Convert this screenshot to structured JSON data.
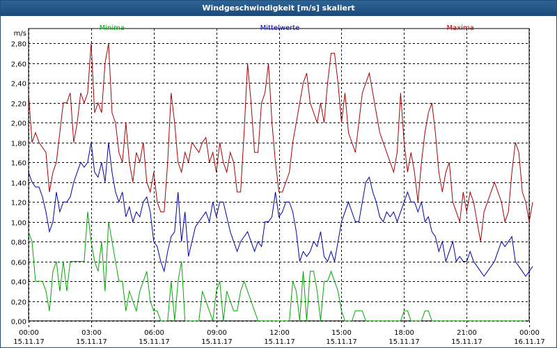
{
  "window": {
    "title": "Windgeschwindigkeit [m/s] skaliert"
  },
  "chart_data": {
    "type": "line",
    "title": "Windgeschwindigkeit [m/s] skaliert",
    "ylabel": "m/s",
    "ylim": [
      0,
      2.95
    ],
    "xlim": [
      0,
      24
    ],
    "grid": true,
    "y_ticks": [
      {
        "value": 0.0,
        "label": "0,00"
      },
      {
        "value": 0.2,
        "label": "0,20"
      },
      {
        "value": 0.4,
        "label": "0,40"
      },
      {
        "value": 0.6,
        "label": "0,60"
      },
      {
        "value": 0.8,
        "label": "0,80"
      },
      {
        "value": 1.0,
        "label": "1,00"
      },
      {
        "value": 1.2,
        "label": "1,20"
      },
      {
        "value": 1.4,
        "label": "1,40"
      },
      {
        "value": 1.6,
        "label": "1,60"
      },
      {
        "value": 1.8,
        "label": "1,80"
      },
      {
        "value": 2.0,
        "label": "2,00"
      },
      {
        "value": 2.2,
        "label": "2,20"
      },
      {
        "value": 2.4,
        "label": "2,40"
      },
      {
        "value": 2.6,
        "label": "2,60"
      },
      {
        "value": 2.8,
        "label": "2,80"
      }
    ],
    "x_ticks": [
      {
        "hour": 0,
        "time": "00:00",
        "date": "15.11.17"
      },
      {
        "hour": 3,
        "time": "03:00",
        "date": "15.11.17"
      },
      {
        "hour": 6,
        "time": "06:00",
        "date": "15.11.17"
      },
      {
        "hour": 9,
        "time": "09:00",
        "date": "15.11.17"
      },
      {
        "hour": 12,
        "time": "12:00",
        "date": "15.11.17"
      },
      {
        "hour": 15,
        "time": "15:00",
        "date": "15.11.17"
      },
      {
        "hour": 18,
        "time": "18:00",
        "date": "15.11.17"
      },
      {
        "hour": 21,
        "time": "21:00",
        "date": "15.11.17"
      },
      {
        "hour": 24,
        "time": "00:00",
        "date": "16.11.17"
      }
    ],
    "x_interval_hours": 0.1667,
    "series": [
      {
        "name": "Minima",
        "color": "#00aa00",
        "values": [
          0.9,
          0.8,
          0.4,
          0.4,
          0.4,
          0.3,
          0.1,
          0.5,
          0.6,
          0.3,
          0.6,
          0.3,
          0.6,
          0.6,
          0.6,
          0.6,
          0.6,
          1.1,
          0.8,
          0.6,
          0.5,
          0.8,
          0.3,
          1.0,
          0.8,
          0.6,
          0.4,
          0.4,
          0.1,
          0.3,
          0.2,
          0.1,
          0.3,
          0.4,
          0.5,
          0.2,
          0.1,
          0.1,
          0.0,
          0.0,
          0.0,
          0.4,
          0.0,
          0.4,
          0.6,
          0.0,
          0.0,
          0.0,
          0.0,
          0.0,
          0.3,
          0.2,
          0.1,
          0.0,
          0.3,
          0.4,
          0.0,
          0.3,
          0.2,
          0.1,
          0.1,
          0.3,
          0.4,
          0.3,
          0.2,
          0.1,
          0.0,
          0.0,
          0.0,
          0.0,
          0.0,
          0.0,
          0.0,
          0.0,
          0.0,
          0.0,
          0.4,
          0.3,
          0.0,
          0.5,
          0.0,
          0.5,
          0.5,
          0.3,
          0.0,
          0.4,
          0.4,
          0.5,
          0.4,
          0.3,
          0.1,
          0.0,
          0.0,
          0.0,
          0.1,
          0.1,
          0.1,
          0.0,
          0.0,
          0.0,
          0.0,
          0.0,
          0.0,
          0.0,
          0.0,
          0.0,
          0.0,
          0.0,
          0.1,
          0.1,
          0.0,
          0.0,
          0.0,
          0.0,
          0.1,
          0.1,
          0.0,
          0.0,
          0.0,
          0.0,
          0.0,
          0.0,
          0.0,
          0.0,
          0.0,
          0.0,
          0.0,
          0.0,
          0.0,
          0.0,
          0.0,
          0.0,
          0.0,
          0.0,
          0.0,
          0.0,
          0.0,
          0.0,
          0.0,
          0.0,
          0.0,
          0.0,
          0.0,
          0.0
        ],
        "label_hour": 4.0,
        "label_value": 2.95
      },
      {
        "name": "Mittelwerte",
        "color": "#0000aa",
        "values": [
          1.5,
          1.4,
          1.35,
          1.35,
          1.25,
          1.1,
          0.9,
          1.0,
          1.3,
          1.1,
          1.2,
          1.2,
          1.25,
          1.4,
          1.5,
          1.6,
          1.55,
          1.6,
          1.8,
          1.5,
          1.45,
          1.6,
          1.4,
          1.8,
          1.5,
          1.3,
          1.2,
          1.3,
          1.05,
          1.15,
          1.0,
          1.1,
          1.05,
          1.2,
          1.25,
          1.1,
          0.8,
          0.75,
          0.6,
          0.5,
          0.7,
          0.85,
          0.9,
          1.3,
          0.8,
          1.1,
          0.65,
          0.8,
          0.95,
          1.0,
          1.05,
          1.1,
          1.0,
          1.2,
          1.05,
          1.2,
          1.2,
          1.05,
          0.9,
          0.8,
          0.7,
          0.8,
          0.85,
          0.9,
          0.8,
          0.7,
          0.8,
          0.75,
          1.0,
          1.0,
          1.05,
          1.3,
          1.05,
          1.1,
          1.2,
          1.2,
          1.1,
          0.9,
          0.6,
          0.7,
          0.65,
          0.7,
          0.8,
          0.75,
          0.9,
          0.65,
          0.6,
          0.7,
          0.6,
          0.8,
          1.0,
          1.1,
          1.2,
          1.1,
          1.0,
          1.0,
          1.2,
          1.4,
          1.45,
          1.3,
          1.2,
          1.05,
          1.0,
          1.1,
          1.05,
          1.1,
          1.0,
          1.1,
          1.2,
          1.3,
          1.2,
          1.2,
          1.1,
          1.2,
          1.0,
          1.05,
          0.9,
          0.85,
          0.7,
          0.8,
          0.6,
          0.7,
          0.8,
          0.6,
          0.65,
          0.6,
          0.6,
          0.7,
          0.6,
          0.55,
          0.5,
          0.45,
          0.5,
          0.55,
          0.6,
          0.7,
          0.8,
          0.75,
          0.8,
          0.85,
          0.6,
          0.55,
          0.5,
          0.45,
          0.5,
          0.55
        ],
        "label_hour": 12.05,
        "label_value": 2.95
      },
      {
        "name": "Maxima",
        "color": "#aa0000",
        "values": [
          2.3,
          1.8,
          1.9,
          1.8,
          1.75,
          1.7,
          1.3,
          1.5,
          1.6,
          1.9,
          2.2,
          2.2,
          2.3,
          1.8,
          2.0,
          2.3,
          2.2,
          2.3,
          2.8,
          2.1,
          2.2,
          2.1,
          2.6,
          2.8,
          2.1,
          2.0,
          1.7,
          1.6,
          2.0,
          1.6,
          1.4,
          1.7,
          1.6,
          1.8,
          1.4,
          1.3,
          1.5,
          1.2,
          1.1,
          1.1,
          1.6,
          2.3,
          2.0,
          1.6,
          1.5,
          1.7,
          1.6,
          1.8,
          1.75,
          1.7,
          1.8,
          1.85,
          1.6,
          1.7,
          1.5,
          1.8,
          1.6,
          1.5,
          1.7,
          1.6,
          1.3,
          1.3,
          1.9,
          2.6,
          2.2,
          1.7,
          1.7,
          2.2,
          2.3,
          2.6,
          2.0,
          1.6,
          1.3,
          1.3,
          1.4,
          1.5,
          1.8,
          2.0,
          2.2,
          2.4,
          2.5,
          2.2,
          2.1,
          2.0,
          2.2,
          2.0,
          2.4,
          2.7,
          2.7,
          2.4,
          2.0,
          2.3,
          1.9,
          1.8,
          1.7,
          2.0,
          2.3,
          2.4,
          2.5,
          2.3,
          2.1,
          1.9,
          1.8,
          1.7,
          1.6,
          1.5,
          1.7,
          2.3,
          1.8,
          1.5,
          1.7,
          1.5,
          1.2,
          1.6,
          1.9,
          2.1,
          2.2,
          1.9,
          1.5,
          1.3,
          1.5,
          1.6,
          1.2,
          1.1,
          1.0,
          1.3,
          1.1,
          1.3,
          1.2,
          1.0,
          0.8,
          1.1,
          1.2,
          1.3,
          1.4,
          1.3,
          1.2,
          1.0,
          1.1,
          1.5,
          1.8,
          1.7,
          1.3,
          1.2,
          1.0,
          1.2
        ],
        "label_hour": 20.7,
        "label_value": 2.95
      }
    ]
  }
}
